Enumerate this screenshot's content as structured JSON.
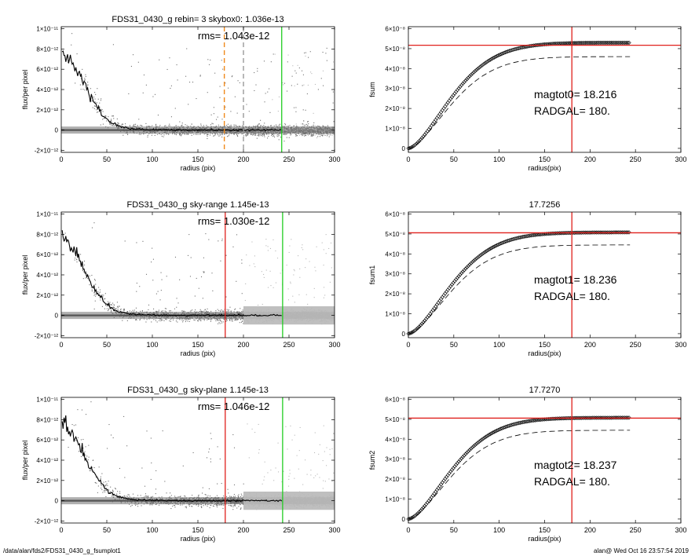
{
  "footer": {
    "left": "/data/alan/fds2/FDS31_0430_g_fsumplot1",
    "right": "alan@  Wed Oct 16 23:57:54 2019"
  },
  "colors": {
    "scatter_dark": "#707070",
    "scatter_light": "#b8b8b8",
    "profile": "#000000",
    "red": "#e0201c",
    "green": "#22cc22",
    "orange": "#f08a1c",
    "dashed_gray": "#9a9a9a"
  },
  "chart_data": [
    {
      "id": "profile-1",
      "type": "scatter",
      "title": "FDS31_0430_g rebin= 3    skybox0:  1.036e-13",
      "annotation": "rms= 1.043e-12",
      "xlabel": "radius (pix)",
      "ylabel": "flux/per pixel",
      "xlim": [
        0,
        300
      ],
      "ylim": [
        -2.2e-12,
        1.02e-11
      ],
      "xticks": [
        "0",
        "50",
        "100",
        "150",
        "200",
        "250",
        "300"
      ],
      "yticks": [
        {
          "value": -2e-12,
          "label": "-2×10⁻¹²"
        },
        {
          "value": 0,
          "label": "0"
        },
        {
          "value": 2e-12,
          "label": "2×10⁻¹²"
        },
        {
          "value": 4e-12,
          "label": "4×10⁻¹²"
        },
        {
          "value": 6e-12,
          "label": "6×10⁻¹²"
        },
        {
          "value": 8e-12,
          "label": "8×10⁻¹²"
        },
        {
          "value": 1e-11,
          "label": "1×10⁻¹¹"
        }
      ],
      "profile_x": [
        0,
        5,
        10,
        15,
        20,
        25,
        30,
        35,
        40,
        45,
        50,
        55,
        60,
        65,
        70,
        80,
        90,
        100,
        120,
        150,
        180,
        200,
        242
      ],
      "profile_y": [
        7.8e-12,
        7.5e-12,
        6.9e-12,
        6.2e-12,
        5.4e-12,
        4.5e-12,
        3.7e-12,
        2.9e-12,
        2.2e-12,
        1.6e-12,
        1.1e-12,
        7.5e-13,
        5e-13,
        3.3e-13,
        2.2e-13,
        1.1e-13,
        6e-14,
        3e-14,
        1e-14,
        0,
        0,
        0,
        0
      ],
      "vlines": [
        {
          "x": 179,
          "color": "orange",
          "style": "dashed"
        },
        {
          "x": 200,
          "color": "dashed_gray",
          "style": "dashed"
        },
        {
          "x": 242,
          "color": "green",
          "style": "solid"
        }
      ],
      "sky_level": 1.036e-13,
      "shading": "mostly-dark"
    },
    {
      "id": "fsum-1",
      "type": "line",
      "title": "",
      "xlabel": "radius(pix)",
      "ylabel": "fsum",
      "xlim": [
        0,
        300
      ],
      "ylim": [
        -2e-09,
        6.1e-08
      ],
      "xticks": [
        "0",
        "50",
        "100",
        "150",
        "200",
        "250",
        "300"
      ],
      "yticks": [
        {
          "value": 0,
          "label": "0"
        },
        {
          "value": 1e-08,
          "label": "1×10⁻⁸"
        },
        {
          "value": 2e-08,
          "label": "2×10⁻⁸"
        },
        {
          "value": 3e-08,
          "label": "3×10⁻⁸"
        },
        {
          "value": 4e-08,
          "label": "4×10⁻⁸"
        },
        {
          "value": 5e-08,
          "label": "5×10⁻⁸"
        },
        {
          "value": 6e-08,
          "label": "6×10⁻⁸"
        }
      ],
      "curve_final": 5.3e-08,
      "curve_at_radgal": 5.17e-08,
      "dashed_final": 4.6e-08,
      "hline": 5.17e-08,
      "vline": 180,
      "xmax": 244,
      "text_line1": "magtot0=  18.216",
      "text_line2": "RADGAL=    180."
    },
    {
      "id": "profile-2",
      "type": "scatter",
      "title": "FDS31_0430_g sky-range  1.145e-13",
      "annotation": "rms= 1.030e-12",
      "xlabel": "radius (pix)",
      "ylabel": "flux/per pixel",
      "xlim": [
        0,
        300
      ],
      "ylim": [
        -2.2e-12,
        1.02e-11
      ],
      "xticks": [
        "0",
        "50",
        "100",
        "150",
        "200",
        "250",
        "300"
      ],
      "yticks": [
        {
          "value": -2e-12,
          "label": "-2×10⁻¹²"
        },
        {
          "value": 0,
          "label": "0"
        },
        {
          "value": 2e-12,
          "label": "2×10⁻¹²"
        },
        {
          "value": 4e-12,
          "label": "4×10⁻¹²"
        },
        {
          "value": 6e-12,
          "label": "6×10⁻¹²"
        },
        {
          "value": 8e-12,
          "label": "8×10⁻¹²"
        },
        {
          "value": 1e-11,
          "label": "1×10⁻¹¹"
        }
      ],
      "profile_x": [
        0,
        5,
        10,
        15,
        20,
        25,
        30,
        35,
        40,
        45,
        50,
        55,
        60,
        65,
        70,
        80,
        90,
        100,
        120,
        150,
        180,
        200,
        242
      ],
      "profile_y": [
        7.8e-12,
        7.5e-12,
        6.9e-12,
        6.2e-12,
        5.4e-12,
        4.5e-12,
        3.7e-12,
        2.9e-12,
        2.2e-12,
        1.6e-12,
        1.1e-12,
        7.5e-13,
        5e-13,
        3.3e-13,
        2.2e-13,
        1.1e-13,
        6e-14,
        3e-14,
        1e-14,
        0,
        0,
        0,
        0
      ],
      "vlines": [
        {
          "x": 180,
          "color": "red",
          "style": "solid"
        },
        {
          "x": 243,
          "color": "green",
          "style": "solid"
        }
      ],
      "sky_level": 1.145e-13,
      "shading": "light-range"
    },
    {
      "id": "fsum-2",
      "type": "line",
      "title": "17.7256",
      "xlabel": "radius(pix)",
      "ylabel": "fsum1",
      "xlim": [
        0,
        300
      ],
      "ylim": [
        -2e-09,
        6.1e-08
      ],
      "xticks": [
        "0",
        "50",
        "100",
        "150",
        "200",
        "250",
        "300"
      ],
      "yticks": [
        {
          "value": 0,
          "label": "0"
        },
        {
          "value": 1e-08,
          "label": "1×10⁻⁸"
        },
        {
          "value": 2e-08,
          "label": "2×10⁻⁸"
        },
        {
          "value": 3e-08,
          "label": "3×10⁻⁸"
        },
        {
          "value": 4e-08,
          "label": "4×10⁻⁸"
        },
        {
          "value": 5e-08,
          "label": "5×10⁻⁸"
        },
        {
          "value": 6e-08,
          "label": "6×10⁻⁸"
        }
      ],
      "curve_final": 5.08e-08,
      "curve_at_radgal": 5.06e-08,
      "dashed_final": 4.45e-08,
      "hline": 5.06e-08,
      "vline": 180,
      "xmax": 244,
      "text_line1": "magtot1=  18.236",
      "text_line2": "RADGAL=    180."
    },
    {
      "id": "profile-3",
      "type": "scatter",
      "title": "FDS31_0430_g sky-plane  1.145e-13",
      "annotation": "rms= 1.046e-12",
      "xlabel": "radius (pix)",
      "ylabel": "flux/per pixel",
      "xlim": [
        0,
        300
      ],
      "ylim": [
        -2.2e-12,
        1.02e-11
      ],
      "xticks": [
        "0",
        "50",
        "100",
        "150",
        "200",
        "250",
        "300"
      ],
      "yticks": [
        {
          "value": -2e-12,
          "label": "-2×10⁻¹²"
        },
        {
          "value": 0,
          "label": "0"
        },
        {
          "value": 2e-12,
          "label": "2×10⁻¹²"
        },
        {
          "value": 4e-12,
          "label": "4×10⁻¹²"
        },
        {
          "value": 6e-12,
          "label": "6×10⁻¹²"
        },
        {
          "value": 8e-12,
          "label": "8×10⁻¹²"
        },
        {
          "value": 1e-11,
          "label": "1×10⁻¹¹"
        }
      ],
      "profile_x": [
        0,
        5,
        10,
        15,
        20,
        25,
        30,
        35,
        40,
        45,
        50,
        55,
        60,
        65,
        70,
        80,
        90,
        100,
        120,
        150,
        180,
        200,
        242
      ],
      "profile_y": [
        7.8e-12,
        7.5e-12,
        6.9e-12,
        6.2e-12,
        5.4e-12,
        4.5e-12,
        3.7e-12,
        2.9e-12,
        2.2e-12,
        1.6e-12,
        1.1e-12,
        7.5e-13,
        5e-13,
        3.3e-13,
        2.2e-13,
        1.1e-13,
        6e-14,
        3e-14,
        1e-14,
        0,
        0,
        0,
        0
      ],
      "vlines": [
        {
          "x": 180,
          "color": "red",
          "style": "solid"
        },
        {
          "x": 243,
          "color": "green",
          "style": "solid"
        }
      ],
      "sky_level": 1.145e-13,
      "shading": "light-range"
    },
    {
      "id": "fsum-3",
      "type": "line",
      "title": "17.7270",
      "xlabel": "radius(pix)",
      "ylabel": "fsum2",
      "xlim": [
        0,
        300
      ],
      "ylim": [
        -2e-09,
        6.1e-08
      ],
      "xticks": [
        "0",
        "50",
        "100",
        "150",
        "200",
        "250",
        "300"
      ],
      "yticks": [
        {
          "value": 0,
          "label": "0"
        },
        {
          "value": 1e-08,
          "label": "1×10⁻⁸"
        },
        {
          "value": 2e-08,
          "label": "2×10⁻⁸"
        },
        {
          "value": 3e-08,
          "label": "3×10⁻⁸"
        },
        {
          "value": 4e-08,
          "label": "4×10⁻⁸"
        },
        {
          "value": 5e-08,
          "label": "5×10⁻⁸"
        },
        {
          "value": 6e-08,
          "label": "6×10⁻⁸"
        }
      ],
      "curve_final": 5.08e-08,
      "curve_at_radgal": 5.06e-08,
      "dashed_final": 4.45e-08,
      "hline": 5.06e-08,
      "vline": 180,
      "xmax": 244,
      "text_line1": "magtot2=  18.237",
      "text_line2": "RADGAL=    180."
    }
  ]
}
